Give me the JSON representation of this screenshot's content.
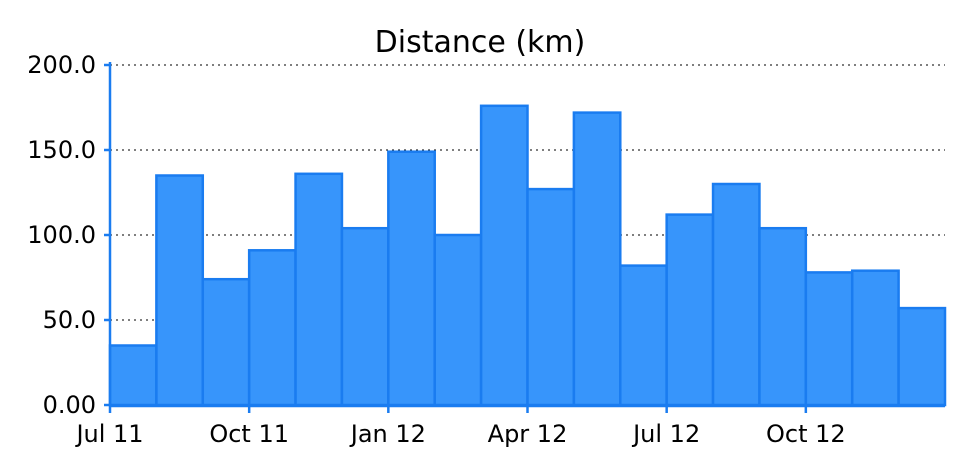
{
  "chart_data": {
    "type": "bar",
    "title": "Distance (km)",
    "xlabel": "",
    "ylabel": "",
    "ylim": [
      0,
      200
    ],
    "y_ticks": [
      "0.00",
      "50.0",
      "100.0",
      "150.0",
      "200.0"
    ],
    "x_tick_labels": [
      "Jul 11",
      "Oct 11",
      "Jan 12",
      "Apr 12",
      "Jul 12",
      "Oct 12"
    ],
    "grid": true,
    "legend": "none",
    "bar_color": "#3795fb",
    "edge_color": "#1a7cf0",
    "categories": [
      "2011-07",
      "2011-08",
      "2011-09",
      "2011-10",
      "2011-11",
      "2011-12",
      "2012-01",
      "2012-02",
      "2012-03",
      "2012-04",
      "2012-05",
      "2012-06",
      "2012-07",
      "2012-08",
      "2012-09",
      "2012-10",
      "2012-11",
      "2012-12"
    ],
    "values": [
      35,
      135,
      74,
      91,
      136,
      104,
      149,
      100,
      176,
      127,
      172,
      82,
      112,
      130,
      104,
      78,
      79,
      57
    ]
  }
}
